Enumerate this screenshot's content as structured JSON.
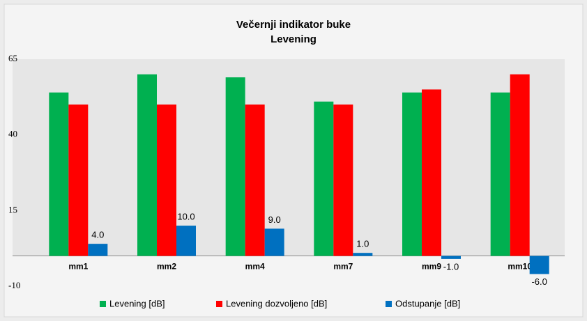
{
  "chart_data": {
    "type": "bar",
    "title": "Večernji indikator buke",
    "subtitle": "Levening",
    "categories": [
      "mm1",
      "mm2",
      "mm4",
      "mm7",
      "mm9",
      "mm10"
    ],
    "series": [
      {
        "name": "Levening [dB]",
        "color": "#00b050",
        "values": [
          54,
          60,
          59,
          51,
          54,
          54
        ]
      },
      {
        "name": "Levening dozvoljeno [dB]",
        "color": "#ff0000",
        "values": [
          50,
          50,
          50,
          50,
          55,
          60
        ]
      },
      {
        "name": "Odstupanje [dB]",
        "color": "#0070c0",
        "values": [
          4,
          10,
          9,
          1,
          -1,
          -6
        ],
        "value_labels": [
          "4.0",
          "10.0",
          "9.0",
          "1.0",
          "-1.0",
          "-6.0"
        ]
      }
    ],
    "ylim": [
      -10,
      65
    ],
    "yticks": [
      -10,
      15,
      40,
      65
    ],
    "grid": false,
    "legend": "bottom"
  }
}
